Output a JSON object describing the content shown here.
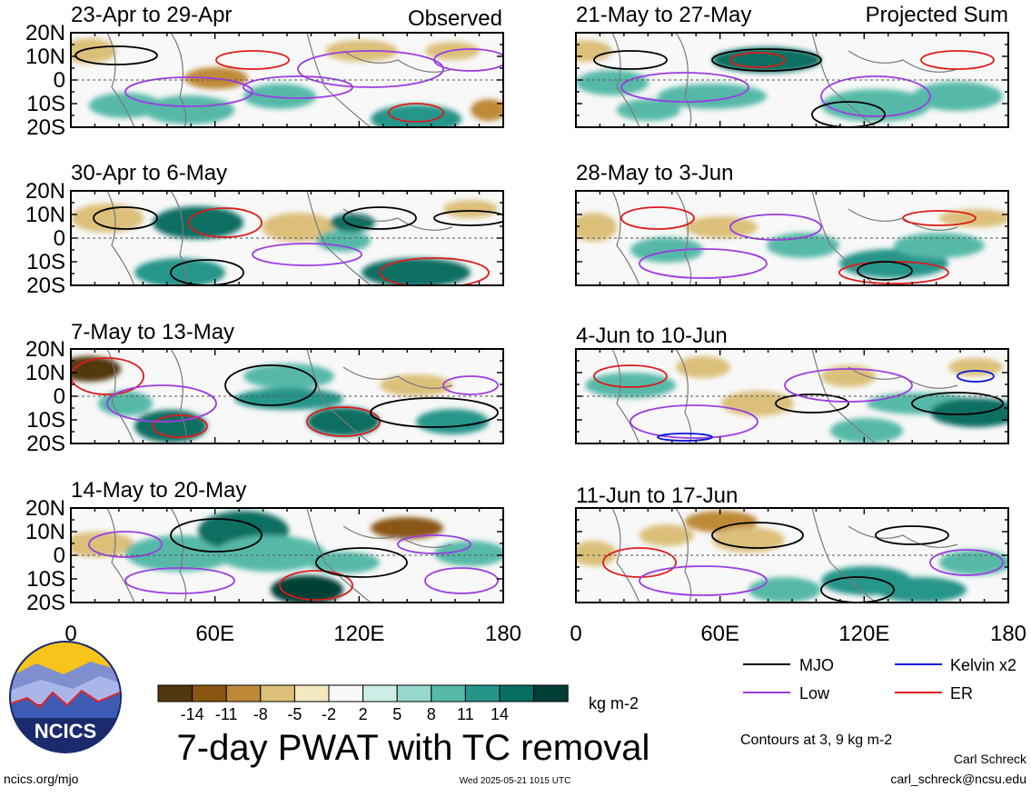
{
  "left_header": "Observed",
  "right_header": "Projected Sum",
  "panels": [
    {
      "title": "23-Apr to 29-Apr"
    },
    {
      "title": "30-Apr to 6-May"
    },
    {
      "title": "7-May to 13-May"
    },
    {
      "title": "14-May to 20-May"
    },
    {
      "title": "21-May to 27-May"
    },
    {
      "title": "28-May to 3-Jun"
    },
    {
      "title": "4-Jun to 10-Jun"
    },
    {
      "title": "11-Jun to 17-Jun"
    }
  ],
  "y_ticks": [
    "20N",
    "10N",
    "0",
    "10S",
    "20S"
  ],
  "x_ticks": [
    "0",
    "60E",
    "120E",
    "180"
  ],
  "colorbar": {
    "labels": [
      "-14",
      "-11",
      "-8",
      "-5",
      "-2",
      "2",
      "5",
      "8",
      "11",
      "14"
    ],
    "colors": [
      "#523810",
      "#8a5612",
      "#be8a38",
      "#dcc07a",
      "#f3e8bf",
      "#f8f8f8",
      "#cdeee6",
      "#96d9cc",
      "#57b9a8",
      "#25958a",
      "#076e62",
      "#003f36"
    ],
    "units": "kg m-2"
  },
  "legend": [
    {
      "label": "MJO",
      "color": "#000000"
    },
    {
      "label": "Kelvin x2",
      "color": "#0a14d8"
    },
    {
      "label": "Low",
      "color": "#9b3ee0"
    },
    {
      "label": "ER",
      "color": "#dd1c1c"
    }
  ],
  "contour_note": "Contours at 3, 9 kg m-2",
  "main_title": "7-day PWAT with TC removal",
  "logo_text": "NCICS",
  "footer": {
    "url": "ncics.org/mjo",
    "timestamp": "Wed 2025-05-21 1015 UTC",
    "author": "Carl Schreck",
    "email": "carl_schreck@ncsu.edu"
  }
}
